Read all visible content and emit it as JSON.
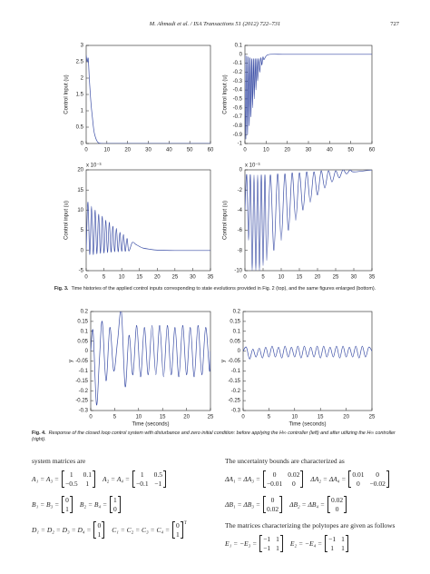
{
  "header": {
    "running_title": "M. Ahmadi et al. / ISA Transactions 51 (2012) 722–731",
    "page_number": "727"
  },
  "chart_data": [
    {
      "type": "line",
      "ylabel": "Control Input (u)",
      "color": "#3b4ea6",
      "x": [
        0,
        0.5,
        1,
        1.5,
        2,
        2.5,
        3,
        3.5,
        4,
        5,
        6,
        8,
        10,
        20,
        30,
        40,
        50,
        60
      ],
      "values": [
        2.7,
        2.5,
        2.6,
        2.0,
        1.5,
        1.1,
        0.8,
        0.5,
        0.3,
        0.1,
        0.02,
        0,
        0,
        0,
        0,
        0,
        0,
        0
      ],
      "xlim": [
        0,
        60
      ],
      "xticks": [
        0,
        10,
        20,
        30,
        40,
        50,
        60
      ],
      "ylim": [
        0,
        3
      ],
      "yticks": [
        0,
        0.5,
        1,
        1.5,
        2,
        2.5,
        3
      ]
    },
    {
      "type": "line",
      "ylabel": "Control Input (u)",
      "color": "#3b4ea6",
      "x": [
        0,
        0.4,
        0.8,
        1.2,
        1.6,
        2,
        2.4,
        2.8,
        3.2,
        3.6,
        4,
        4.4,
        4.8,
        5.2,
        5.6,
        6,
        6.5,
        7,
        7.5,
        8,
        8.5,
        9,
        10,
        12,
        20,
        40,
        60
      ],
      "values": [
        0,
        -0.95,
        -0.02,
        -0.9,
        -0.03,
        -0.8,
        -0.04,
        -0.7,
        -0.05,
        -0.6,
        -0.05,
        -0.5,
        -0.05,
        -0.4,
        -0.05,
        -0.3,
        -0.05,
        -0.2,
        -0.04,
        -0.12,
        -0.03,
        -0.06,
        -0.02,
        0,
        0,
        0,
        0
      ],
      "xlim": [
        0,
        60
      ],
      "xticks": [
        0,
        10,
        20,
        30,
        40,
        50,
        60
      ],
      "ylim": [
        -1,
        0.1
      ],
      "yticks": [
        -1,
        -0.9,
        -0.8,
        -0.7,
        -0.6,
        -0.5,
        -0.4,
        -0.3,
        -0.2,
        -0.1,
        0,
        0.1
      ]
    },
    {
      "type": "line",
      "ylabel": "Control input (u)",
      "y_scale_label": "x 10⁻³",
      "color": "#3b4ea6",
      "x": [
        0,
        0.5,
        1,
        1.5,
        2,
        2.5,
        3,
        3.5,
        4,
        4.5,
        5,
        5.5,
        6,
        6.5,
        7,
        7.5,
        8,
        8.5,
        9,
        9.5,
        10,
        10.5,
        11,
        11.5,
        12,
        13,
        14,
        15,
        16,
        18,
        20,
        25,
        30,
        35
      ],
      "values": [
        0,
        12,
        -1,
        11,
        -1,
        10,
        -0.8,
        9,
        -0.7,
        8.5,
        -0.6,
        7.5,
        -0.5,
        7,
        -0.4,
        6,
        -0.3,
        5.5,
        -0.3,
        4.5,
        -0.2,
        4,
        -0.2,
        3,
        -0.1,
        2,
        1.5,
        1,
        0.6,
        0.3,
        0.1,
        0,
        0,
        0
      ],
      "xlim": [
        0,
        35
      ],
      "xticks": [
        0,
        5,
        10,
        15,
        20,
        25,
        30,
        35
      ],
      "ylim": [
        -5,
        20
      ],
      "yticks": [
        -5,
        0,
        5,
        10,
        15,
        20
      ]
    },
    {
      "type": "line",
      "ylabel": "Control input (u)",
      "y_scale_label": "x 10⁻³",
      "color": "#3b4ea6",
      "x": [
        0,
        0.5,
        1,
        1.5,
        2,
        2.5,
        3,
        3.5,
        4,
        4.5,
        5,
        5.5,
        6,
        7,
        8,
        9,
        10,
        11,
        12,
        13,
        14,
        15,
        16,
        17,
        18,
        19,
        20,
        21,
        22,
        23,
        24,
        25,
        26,
        27,
        28,
        29,
        30,
        35
      ],
      "values": [
        -4,
        -0.5,
        -7,
        -0.5,
        -10,
        -0.5,
        -10,
        -0.5,
        -10,
        -0.5,
        -9.5,
        -0.5,
        -9,
        -0.5,
        -8,
        -0.4,
        -7,
        -0.4,
        -6,
        -0.3,
        -5,
        -0.3,
        -4,
        -0.2,
        -3.2,
        -0.2,
        -2.5,
        -0.1,
        -1.8,
        -0.1,
        -1.2,
        -0.1,
        -0.8,
        0,
        -0.4,
        0,
        -0.2,
        0
      ],
      "xlim": [
        0,
        35
      ],
      "xticks": [
        0,
        5,
        10,
        15,
        20,
        25,
        30,
        35
      ],
      "ylim": [
        -10,
        0
      ],
      "yticks": [
        -10,
        -8,
        -6,
        -4,
        -2,
        0
      ]
    },
    {
      "type": "line",
      "ylabel": "y",
      "xlabel": "Time (seconds)",
      "color": "#3b4ea6",
      "x": [
        0,
        0.5,
        1.2,
        1.8,
        2.4,
        3.2,
        4.0,
        4.8,
        5.6,
        6.4,
        7.2,
        8.0,
        8.8,
        9.6,
        10.4,
        11.2,
        12.0,
        12.8,
        13.6,
        14.4,
        15.2,
        16.0,
        16.8,
        17.6,
        18.4,
        19.2,
        20.0,
        20.8,
        21.6,
        22.4,
        23.2,
        24.0,
        24.8,
        25
      ],
      "values": [
        0,
        0.1,
        -0.27,
        -0.05,
        0.15,
        -0.15,
        0.12,
        -0.1,
        0.05,
        0.2,
        -0.18,
        0.08,
        -0.12,
        0.13,
        -0.13,
        0.12,
        -0.12,
        0.13,
        -0.12,
        0.13,
        -0.13,
        0.13,
        -0.12,
        0.12,
        -0.13,
        0.13,
        -0.12,
        0.12,
        -0.13,
        0.13,
        -0.12,
        0.12,
        -0.1,
        0
      ],
      "xlim": [
        0,
        25
      ],
      "xticks": [
        0,
        5,
        10,
        15,
        20,
        25
      ],
      "ylim": [
        -0.3,
        0.2
      ],
      "yticks": [
        -0.3,
        -0.25,
        -0.2,
        -0.15,
        -0.1,
        -0.05,
        0,
        0.05,
        0.1,
        0.15,
        0.2
      ]
    },
    {
      "type": "line",
      "ylabel": "y",
      "xlabel": "Time (seconds)",
      "color": "#3b4ea6",
      "x": [
        0,
        0.625,
        1.25,
        1.875,
        2.5,
        3.125,
        3.75,
        4.375,
        5,
        5.625,
        6.25,
        6.875,
        7.5,
        8.125,
        8.75,
        9.375,
        10,
        10.625,
        11.25,
        11.875,
        12.5,
        13.125,
        13.75,
        14.375,
        15,
        15.625,
        16.25,
        16.875,
        17.5,
        18.125,
        18.75,
        19.375,
        20,
        20.625,
        21.25,
        21.875,
        22.5,
        23.125,
        23.75,
        24.375,
        25
      ],
      "values": [
        0,
        0.02,
        -0.04,
        0.01,
        -0.03,
        0.015,
        -0.035,
        0.02,
        -0.03,
        0.025,
        -0.03,
        0.02,
        -0.035,
        0.025,
        -0.03,
        0.02,
        -0.03,
        0.025,
        -0.035,
        0.025,
        -0.03,
        0.02,
        -0.03,
        0.025,
        -0.035,
        0.025,
        -0.03,
        0.02,
        -0.03,
        0.025,
        -0.035,
        0.025,
        -0.03,
        0.02,
        -0.03,
        0.025,
        -0.035,
        0.025,
        -0.03,
        0.02,
        0
      ],
      "xlim": [
        0,
        25
      ],
      "xticks": [
        0,
        5,
        10,
        15,
        20,
        25
      ],
      "ylim": [
        -0.3,
        0.2
      ],
      "yticks": [
        -0.3,
        -0.25,
        -0.2,
        -0.15,
        -0.1,
        -0.05,
        0,
        0.05,
        0.1,
        0.15,
        0.2
      ]
    }
  ],
  "figure_3_caption": {
    "label": "Fig. 3.",
    "text": "Time histories of the applied control inputs corresponding to state evolutions provided in Fig. 2 (top), and the same figures enlarged (bottom)."
  },
  "figure_4_caption": {
    "label": "Fig. 4.",
    "text": "Response of the closed loop control system with disturbance and zero initial condition: before applying the H∞ controller (left) and after utilizing the H∞ controller (right)."
  },
  "body": {
    "left": [
      {
        "text": "system matrices are"
      },
      {
        "terms": [
          {
            "lhs": "A₁ = A₃ =",
            "matrix": [
              [
                "1",
                "0.1"
              ],
              [
                "−0.5",
                "1"
              ]
            ]
          },
          {
            "lhs": "A₂ = A₄ =",
            "matrix": [
              [
                "1",
                "0.5"
              ],
              [
                "−0.1",
                "−1"
              ]
            ]
          }
        ]
      },
      {
        "terms": [
          {
            "lhs": "B₁ = B₃ =",
            "matrix": [
              [
                "0"
              ],
              [
                "1"
              ]
            ]
          },
          {
            "lhs": "B₂ = B₄ =",
            "matrix": [
              [
                "1"
              ],
              [
                "0"
              ]
            ]
          }
        ]
      },
      {
        "terms": [
          {
            "lhs": "D₁ = D₂ = D₃ = D₄ =",
            "matrix": [
              [
                "0"
              ],
              [
                "1"
              ]
            ]
          },
          {
            "lhs": "C₁ = C₂ = C₃ = C₄ =",
            "matrix": [
              [
                "0"
              ],
              [
                "1"
              ]
            ],
            "sup": "T"
          }
        ]
      }
    ],
    "right": [
      {
        "text": "The uncertainty bounds are characterized as"
      },
      {
        "terms": [
          {
            "lhs": "ΔA₁ = ΔA₃ =",
            "matrix": [
              [
                "0",
                "0.02"
              ],
              [
                "−0.01",
                "0"
              ]
            ]
          },
          {
            "lhs": "ΔA₂ = ΔA₄ =",
            "matrix": [
              [
                "0.01",
                "0"
              ],
              [
                "0",
                "−0.02"
              ]
            ]
          }
        ]
      },
      {
        "terms": [
          {
            "lhs": "ΔB₁ = ΔB₃ =",
            "matrix": [
              [
                "0"
              ],
              [
                "0.02"
              ]
            ]
          },
          {
            "lhs": "ΔB₂ = ΔB₄ =",
            "matrix": [
              [
                "0.02"
              ],
              [
                "0"
              ]
            ]
          }
        ]
      },
      {
        "text": "The matrices characterizing the polytopes are given as follows"
      },
      {
        "terms": [
          {
            "lhs": "E₁ = −E₃ =",
            "matrix": [
              [
                "−1",
                "1"
              ],
              [
                "−1",
                "1"
              ]
            ]
          },
          {
            "lhs": "E₂ = −E₄ =",
            "matrix": [
              [
                "−1",
                "1"
              ],
              [
                "1",
                "1"
              ]
            ]
          }
        ]
      }
    ]
  }
}
